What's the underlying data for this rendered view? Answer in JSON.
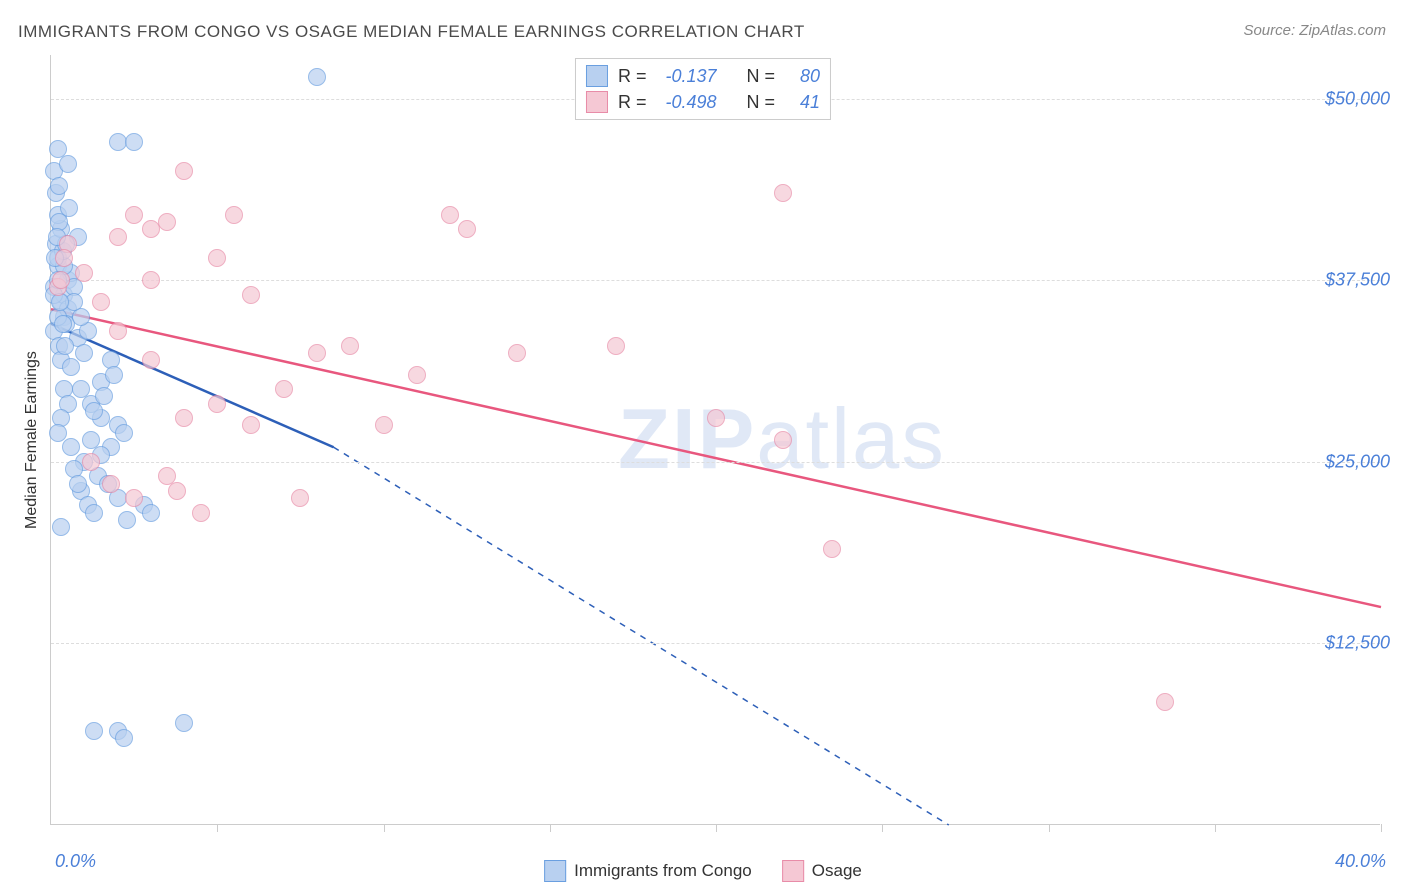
{
  "title": "IMMIGRANTS FROM CONGO VS OSAGE MEDIAN FEMALE EARNINGS CORRELATION CHART",
  "source": "Source: ZipAtlas.com",
  "y_axis_label": "Median Female Earnings",
  "watermark": "ZIPatlas",
  "chart": {
    "type": "scatter",
    "xlim": [
      0,
      40
    ],
    "ylim": [
      0,
      53000
    ],
    "x_min_label": "0.0%",
    "x_max_label": "40.0%",
    "y_ticks": [
      12500,
      25000,
      37500,
      50000
    ],
    "y_tick_labels": [
      "$12,500",
      "$25,000",
      "$37,500",
      "$50,000"
    ],
    "x_tick_positions": [
      5,
      10,
      15,
      20,
      25,
      30,
      35,
      40
    ],
    "grid_color": "#dddddd",
    "background_color": "#ffffff",
    "axis_color": "#cccccc",
    "tick_label_color": "#4a7fd8",
    "tick_fontsize": 18,
    "title_fontsize": 17,
    "marker_radius": 9,
    "marker_opacity": 0.7
  },
  "series": [
    {
      "name": "Immigrants from Congo",
      "color_fill": "#b8d0f0",
      "color_stroke": "#6a9fe0",
      "R": "-0.137",
      "N": "80",
      "trend": {
        "x1": 0,
        "y1": 34500,
        "x2_solid": 8.5,
        "y2_solid": 26000,
        "x2_dash": 27,
        "y2_dash": 0,
        "stroke": "#2d5fb8",
        "width": 2.5
      },
      "points": [
        [
          0.1,
          37000
        ],
        [
          0.2,
          38500
        ],
        [
          0.3,
          36000
        ],
        [
          0.15,
          40000
        ],
        [
          0.4,
          35000
        ],
        [
          0.5,
          37500
        ],
        [
          0.2,
          39000
        ],
        [
          0.3,
          41000
        ],
        [
          0.1,
          34000
        ],
        [
          0.25,
          33000
        ],
        [
          0.4,
          36500
        ],
        [
          0.6,
          38000
        ],
        [
          0.8,
          40500
        ],
        [
          0.2,
          42000
        ],
        [
          0.5,
          35500
        ],
        [
          0.7,
          37000
        ],
        [
          0.3,
          32000
        ],
        [
          0.45,
          34500
        ],
        [
          0.1,
          45000
        ],
        [
          0.2,
          46500
        ],
        [
          0.5,
          45500
        ],
        [
          2.0,
          47000
        ],
        [
          2.5,
          47000
        ],
        [
          8.0,
          51500
        ],
        [
          0.9,
          30000
        ],
        [
          1.2,
          29000
        ],
        [
          1.5,
          30500
        ],
        [
          1.8,
          32000
        ],
        [
          1.5,
          28000
        ],
        [
          2.0,
          27500
        ],
        [
          1.2,
          26500
        ],
        [
          1.8,
          26000
        ],
        [
          1.0,
          25000
        ],
        [
          1.5,
          25500
        ],
        [
          2.2,
          27000
        ],
        [
          1.3,
          28500
        ],
        [
          1.6,
          29500
        ],
        [
          1.9,
          31000
        ],
        [
          1.4,
          24000
        ],
        [
          1.7,
          23500
        ],
        [
          0.6,
          31500
        ],
        [
          0.8,
          33500
        ],
        [
          1.0,
          32500
        ],
        [
          1.1,
          34000
        ],
        [
          0.9,
          35000
        ],
        [
          0.7,
          36000
        ],
        [
          0.4,
          30000
        ],
        [
          0.5,
          29000
        ],
        [
          0.3,
          28000
        ],
        [
          0.2,
          27000
        ],
        [
          0.6,
          26000
        ],
        [
          0.7,
          24500
        ],
        [
          0.9,
          23000
        ],
        [
          1.1,
          22000
        ],
        [
          1.3,
          21500
        ],
        [
          0.15,
          43500
        ],
        [
          0.25,
          44000
        ],
        [
          2.0,
          22500
        ],
        [
          2.3,
          21000
        ],
        [
          2.8,
          22000
        ],
        [
          3.0,
          21500
        ],
        [
          0.3,
          20500
        ],
        [
          0.4,
          38500
        ],
        [
          0.35,
          39500
        ],
        [
          0.25,
          41500
        ],
        [
          0.45,
          40000
        ],
        [
          0.55,
          42500
        ],
        [
          0.1,
          36500
        ],
        [
          0.2,
          35000
        ],
        [
          0.12,
          39000
        ],
        [
          0.18,
          40500
        ],
        [
          0.22,
          37500
        ],
        [
          0.28,
          36000
        ],
        [
          0.35,
          34500
        ],
        [
          0.42,
          33000
        ],
        [
          1.3,
          6500
        ],
        [
          2.0,
          6500
        ],
        [
          2.2,
          6000
        ],
        [
          4.0,
          7000
        ],
        [
          0.8,
          23500
        ]
      ]
    },
    {
      "name": "Osage",
      "color_fill": "#f5c8d4",
      "color_stroke": "#e88ca8",
      "R": "-0.498",
      "N": "41",
      "trend": {
        "x1": 0,
        "y1": 35500,
        "x2_solid": 40,
        "y2_solid": 15000,
        "stroke": "#e8577e",
        "width": 2.5
      },
      "points": [
        [
          0.2,
          37000
        ],
        [
          0.5,
          40000
        ],
        [
          1.0,
          38000
        ],
        [
          1.5,
          36000
        ],
        [
          2.0,
          40500
        ],
        [
          2.5,
          42000
        ],
        [
          3.0,
          41000
        ],
        [
          3.5,
          41500
        ],
        [
          4.0,
          45000
        ],
        [
          5.0,
          39000
        ],
        [
          5.5,
          42000
        ],
        [
          6.0,
          36500
        ],
        [
          2.0,
          34000
        ],
        [
          3.0,
          32000
        ],
        [
          4.0,
          28000
        ],
        [
          5.0,
          29000
        ],
        [
          3.5,
          24000
        ],
        [
          6.0,
          27500
        ],
        [
          7.0,
          30000
        ],
        [
          8.0,
          32500
        ],
        [
          9.0,
          33000
        ],
        [
          10.0,
          27500
        ],
        [
          11.0,
          31000
        ],
        [
          12.0,
          42000
        ],
        [
          12.5,
          41000
        ],
        [
          14.0,
          32500
        ],
        [
          17.0,
          33000
        ],
        [
          20.0,
          28000
        ],
        [
          22.0,
          26500
        ],
        [
          22.0,
          43500
        ],
        [
          23.5,
          19000
        ],
        [
          33.5,
          8500
        ],
        [
          1.2,
          25000
        ],
        [
          1.8,
          23500
        ],
        [
          2.5,
          22500
        ],
        [
          3.8,
          23000
        ],
        [
          4.5,
          21500
        ],
        [
          3.0,
          37500
        ],
        [
          7.5,
          22500
        ],
        [
          0.3,
          37500
        ],
        [
          0.4,
          39000
        ]
      ]
    }
  ],
  "legend_top": {
    "rows": [
      {
        "swatch_fill": "#b8d0f0",
        "swatch_stroke": "#6a9fe0",
        "R_label": "R =",
        "R_val": "-0.137",
        "N_label": "N =",
        "N_val": "80"
      },
      {
        "swatch_fill": "#f5c8d4",
        "swatch_stroke": "#e88ca8",
        "R_label": "R =",
        "R_val": "-0.498",
        "N_label": "N =",
        "N_val": "41"
      }
    ]
  },
  "legend_bottom": {
    "items": [
      {
        "swatch_fill": "#b8d0f0",
        "swatch_stroke": "#6a9fe0",
        "label": "Immigrants from Congo"
      },
      {
        "swatch_fill": "#f5c8d4",
        "swatch_stroke": "#e88ca8",
        "label": "Osage"
      }
    ]
  }
}
